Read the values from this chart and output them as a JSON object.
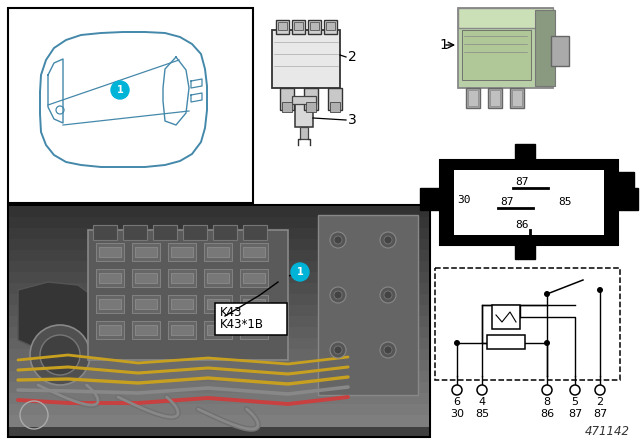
{
  "diagram_number": "471142",
  "bg_color": "#ffffff",
  "relay_color": "#b8cfa8",
  "label_circle_color": "#00b4d8",
  "label_text_color": "#ffffff",
  "photo_bg": "#8a8a8a",
  "pin_schematic_nums": [
    "6",
    "4",
    "8",
    "5",
    "2"
  ],
  "pin_schematic_names": [
    "30",
    "85",
    "86",
    "87",
    "87"
  ]
}
